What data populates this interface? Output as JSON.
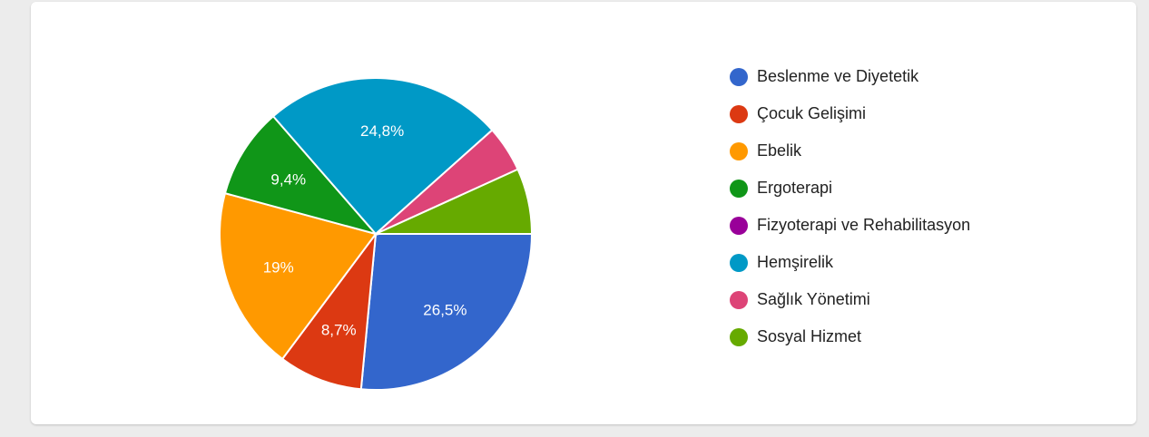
{
  "chart_data": {
    "type": "pie",
    "legend_position": "right",
    "slices": [
      {
        "name": "Beslenme ve Diyetetik",
        "value": 26.5,
        "label": "26,5%",
        "color": "#3366cc"
      },
      {
        "name": "Çocuk Gelişimi",
        "value": 8.7,
        "label": "8,7%",
        "color": "#dc3912"
      },
      {
        "name": "Ebelik",
        "value": 19,
        "label": "19%",
        "color": "#ff9900"
      },
      {
        "name": "Ergoterapi",
        "value": 9.4,
        "label": "9,4%",
        "color": "#109618"
      },
      {
        "name": "Fizyoterapi ve Rehabilitasyon",
        "value": 0,
        "label": "",
        "color": "#990099"
      },
      {
        "name": "Hemşirelik",
        "value": 24.8,
        "label": "24,8%",
        "color": "#0099c6"
      },
      {
        "name": "Sağlık Yönetimi",
        "value": 4.8,
        "label": "",
        "color": "#dd4477"
      },
      {
        "name": "Sosyal Hizmet",
        "value": 6.8,
        "label": "",
        "color": "#66aa00"
      }
    ]
  }
}
